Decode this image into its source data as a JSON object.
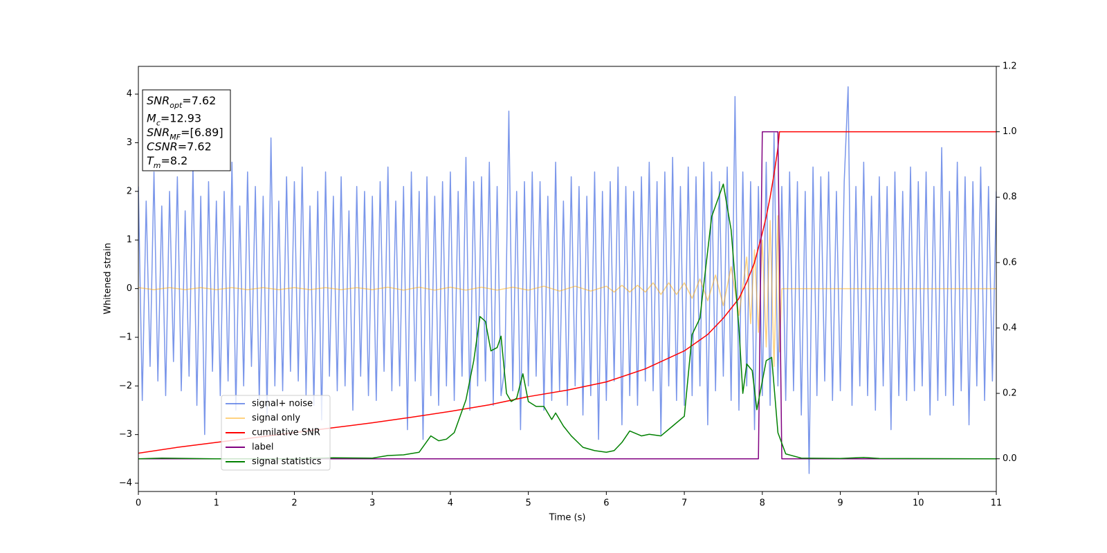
{
  "chart_data": {
    "type": "line",
    "xlabel": "Time (s)",
    "ylabel": "Whitened strain",
    "xlim": [
      0,
      11
    ],
    "xticks": [
      0,
      1,
      2,
      3,
      4,
      5,
      6,
      7,
      8,
      9,
      10,
      11
    ],
    "ylim": [
      -4.17,
      4.57
    ],
    "yticks": [
      {
        "value": -4,
        "label": "−4"
      },
      {
        "value": -3,
        "label": "−3"
      },
      {
        "value": -2,
        "label": "−2"
      },
      {
        "value": -1,
        "label": "−1"
      },
      0,
      1,
      2,
      3,
      4
    ],
    "y2lim": [
      -0.1,
      1.2
    ],
    "y2ticks": [
      {
        "value": 0,
        "label": "0.0"
      },
      {
        "value": 0.2,
        "label": "0.2"
      },
      {
        "value": 0.4,
        "label": "0.4"
      },
      {
        "value": 0.6,
        "label": "0.6"
      },
      {
        "value": 0.8,
        "label": "0.8"
      },
      {
        "value": 1.0,
        "label": "1.0"
      },
      {
        "value": 1.2,
        "label": "1.2"
      }
    ],
    "legend": "lower left",
    "annotation": [
      {
        "var": "SNR",
        "sub": "opt",
        "text": "=7.62"
      },
      {
        "var": "M",
        "sub": "c",
        "text": "=12.93"
      },
      {
        "var": "SNR",
        "sub": "MF",
        "text": "=[6.89]"
      },
      {
        "var": "CSNR",
        "text": "=7.62"
      },
      {
        "var": "T",
        "sub": "m",
        "text": "=8.2"
      }
    ],
    "series": [
      {
        "name": "signal+ noise",
        "color": "#4169e1",
        "alpha": 0.7,
        "x": [
          0,
          0.05,
          0.1,
          0.15,
          0.2,
          0.25,
          0.3,
          0.35,
          0.4,
          0.45,
          0.5,
          0.55,
          0.6,
          0.65,
          0.7,
          0.75,
          0.8,
          0.85,
          0.9,
          0.95,
          1,
          1.05,
          1.1,
          1.15,
          1.2,
          1.25,
          1.3,
          1.35,
          1.4,
          1.45,
          1.5,
          1.55,
          1.6,
          1.65,
          1.7,
          1.75,
          1.8,
          1.85,
          1.9,
          1.95,
          2,
          2.05,
          2.1,
          2.15,
          2.2,
          2.25,
          2.3,
          2.35,
          2.4,
          2.45,
          2.5,
          2.55,
          2.6,
          2.65,
          2.7,
          2.75,
          2.8,
          2.85,
          2.9,
          2.95,
          3,
          3.05,
          3.1,
          3.15,
          3.2,
          3.25,
          3.3,
          3.35,
          3.4,
          3.45,
          3.5,
          3.55,
          3.6,
          3.65,
          3.7,
          3.75,
          3.8,
          3.85,
          3.9,
          3.95,
          4,
          4.05,
          4.1,
          4.15,
          4.2,
          4.25,
          4.3,
          4.35,
          4.4,
          4.45,
          4.5,
          4.55,
          4.6,
          4.65,
          4.7,
          4.75,
          4.8,
          4.85,
          4.9,
          4.95,
          5,
          5.05,
          5.1,
          5.15,
          5.2,
          5.25,
          5.3,
          5.35,
          5.4,
          5.45,
          5.5,
          5.55,
          5.6,
          5.65,
          5.7,
          5.75,
          5.8,
          5.85,
          5.9,
          5.95,
          6,
          6.05,
          6.1,
          6.15,
          6.2,
          6.25,
          6.3,
          6.35,
          6.4,
          6.45,
          6.5,
          6.55,
          6.6,
          6.65,
          6.7,
          6.75,
          6.8,
          6.85,
          6.9,
          6.95,
          7,
          7.05,
          7.1,
          7.15,
          7.2,
          7.25,
          7.3,
          7.35,
          7.4,
          7.45,
          7.5,
          7.55,
          7.6,
          7.65,
          7.7,
          7.75,
          7.8,
          7.85,
          7.9,
          7.95,
          8,
          8.05,
          8.1,
          8.15,
          8.2,
          8.25,
          8.3,
          8.35,
          8.4,
          8.45,
          8.5,
          8.55,
          8.6,
          8.65,
          8.7,
          8.75,
          8.8,
          8.85,
          8.9,
          8.95,
          9,
          9.05,
          9.1,
          9.15,
          9.2,
          9.25,
          9.3,
          9.35,
          9.4,
          9.45,
          9.5,
          9.55,
          9.6,
          9.65,
          9.7,
          9.75,
          9.8,
          9.85,
          9.9,
          9.95,
          10,
          10.05,
          10.1,
          10.15,
          10.2,
          10.25,
          10.3,
          10.35,
          10.4,
          10.45,
          10.5,
          10.55,
          10.6,
          10.65,
          10.7,
          10.75,
          10.8,
          10.85,
          10.9,
          10.95,
          11
        ],
        "values": [
          2.1,
          -2.3,
          1.8,
          -1.6,
          2.4,
          -1.9,
          1.7,
          -2.2,
          2.0,
          -1.5,
          2.3,
          -2.1,
          1.6,
          -1.8,
          2.5,
          -2.4,
          1.9,
          -3.0,
          2.2,
          -1.7,
          1.8,
          -2.2,
          2.0,
          -1.9,
          2.6,
          -2.5,
          1.7,
          -2.0,
          2.4,
          -1.6,
          2.1,
          -2.3,
          1.9,
          -2.6,
          3.1,
          -2.0,
          1.8,
          -2.1,
          2.3,
          -1.7,
          2.2,
          -1.9,
          2.5,
          -2.2,
          1.7,
          -2.4,
          2.0,
          -2.7,
          2.4,
          -1.8,
          1.9,
          -2.1,
          2.3,
          -2.0,
          1.6,
          -2.5,
          2.1,
          -1.8,
          2.0,
          -2.2,
          1.9,
          -2.3,
          2.2,
          -1.7,
          2.5,
          -2.1,
          1.8,
          -2.0,
          2.1,
          -2.9,
          2.4,
          -1.9,
          2.0,
          -3.1,
          2.3,
          -2.2,
          1.9,
          -2.4,
          2.2,
          -2.0,
          2.4,
          -2.3,
          2.0,
          -1.8,
          2.7,
          -2.5,
          2.2,
          -2.0,
          2.3,
          -1.9,
          2.6,
          -2.4,
          2.1,
          -2.2,
          -1.6,
          3.65,
          -2.1,
          2.0,
          -2.9,
          2.2,
          -2.0,
          2.4,
          -1.8,
          2.2,
          -2.5,
          1.9,
          -2.3,
          2.6,
          -2.1,
          1.8,
          -2.4,
          2.3,
          -2.0,
          2.1,
          -2.6,
          1.9,
          -2.2,
          2.4,
          -3.1,
          2.0,
          -2.3,
          2.2,
          -1.9,
          2.5,
          -2.8,
          2.1,
          -2.2,
          2.0,
          -2.4,
          2.3,
          -1.9,
          2.6,
          -2.1,
          2.2,
          -3.0,
          2.4,
          -2.0,
          2.7,
          -2.3,
          2.1,
          -2.4,
          2.5,
          -2.2,
          2.3,
          -2.0,
          2.6,
          -2.8,
          2.4,
          -2.1,
          2.2,
          -1.8,
          2.5,
          -2.3,
          3.95,
          -2.5,
          2.4,
          -2.0,
          2.2,
          -2.9,
          2.1,
          -2.2,
          2.6,
          -2.4,
          3.2,
          -2.0,
          2.1,
          -2.3,
          2.4,
          -2.1,
          2.2,
          -2.6,
          2.0,
          -3.8,
          2.5,
          -2.2,
          2.3,
          -1.9,
          2.4,
          -2.3,
          2.0,
          -2.1,
          2.2,
          4.15,
          -2.4,
          2.1,
          -2.0,
          2.6,
          -2.2,
          1.9,
          -2.5,
          2.3,
          -2.0,
          2.1,
          -2.9,
          2.4,
          -2.2,
          2.0,
          -2.3,
          2.5,
          -2.1,
          2.2,
          -2.0,
          2.4,
          -2.6,
          2.1,
          -2.3,
          2.9,
          -2.2,
          2.0,
          -2.4,
          2.6,
          -2.1,
          2.3,
          -2.8,
          2.2,
          -2.0,
          2.5,
          -2.3,
          2.1,
          -1.9,
          2.0
        ]
      },
      {
        "name": "signal only",
        "color": "#ffa500",
        "alpha": 0.5,
        "x": [
          0,
          0.2,
          0.4,
          0.6,
          0.8,
          1.0,
          1.2,
          1.4,
          1.6,
          1.8,
          2.0,
          2.2,
          2.4,
          2.6,
          2.8,
          3.0,
          3.2,
          3.4,
          3.6,
          3.8,
          4.0,
          4.2,
          4.4,
          4.6,
          4.8,
          5.0,
          5.2,
          5.4,
          5.6,
          5.8,
          6.0,
          6.1,
          6.2,
          6.3,
          6.4,
          6.5,
          6.6,
          6.7,
          6.8,
          6.9,
          7.0,
          7.1,
          7.2,
          7.3,
          7.4,
          7.5,
          7.6,
          7.7,
          7.8,
          7.85,
          7.9,
          7.95,
          8.0,
          8.05,
          8.1,
          8.15,
          8.2,
          8.22,
          8.25,
          11
        ],
        "values": [
          0.02,
          -0.02,
          0.02,
          -0.02,
          0.02,
          -0.02,
          0.02,
          -0.02,
          0.02,
          -0.02,
          0.02,
          -0.02,
          0.02,
          -0.02,
          0.02,
          -0.02,
          0.03,
          -0.03,
          0.03,
          -0.03,
          0.03,
          -0.03,
          0.03,
          -0.03,
          0.03,
          -0.03,
          0.05,
          -0.05,
          0.05,
          -0.05,
          0.05,
          -0.07,
          0.07,
          -0.07,
          0.07,
          -0.07,
          0.12,
          -0.12,
          0.12,
          -0.12,
          0.12,
          -0.2,
          0.2,
          -0.25,
          0.28,
          -0.35,
          0.45,
          -0.55,
          0.65,
          -0.72,
          0.8,
          -0.9,
          1.0,
          -1.2,
          1.4,
          -1.6,
          1.5,
          -1.3,
          0,
          0
        ]
      },
      {
        "name": "cumilative SNR",
        "color": "#ff0000",
        "axis": "y2",
        "x": [
          0,
          0.5,
          1,
          1.5,
          2,
          2.5,
          3,
          3.5,
          4,
          4.5,
          5,
          5.5,
          6,
          6.5,
          7,
          7.3,
          7.5,
          7.7,
          7.8,
          7.9,
          8.0,
          8.05,
          8.1,
          8.15,
          8.2,
          8.22,
          11
        ],
        "values": [
          0.017,
          0.035,
          0.05,
          0.065,
          0.08,
          0.095,
          0.11,
          0.127,
          0.145,
          0.165,
          0.19,
          0.21,
          0.235,
          0.275,
          0.33,
          0.38,
          0.43,
          0.49,
          0.54,
          0.6,
          0.69,
          0.74,
          0.8,
          0.87,
          0.95,
          1.0,
          1.0
        ]
      },
      {
        "name": "label",
        "color": "#800080",
        "axis": "y2",
        "x": [
          0,
          7.95,
          8.0,
          8.2,
          8.25,
          11
        ],
        "values": [
          0,
          0,
          1,
          1,
          0,
          0
        ]
      },
      {
        "name": "signal statistics",
        "color": "#008000",
        "axis": "y2",
        "x": [
          0,
          0.3,
          1,
          2,
          2.5,
          3,
          3.2,
          3.4,
          3.6,
          3.75,
          3.85,
          3.95,
          4.05,
          4.2,
          4.3,
          4.38,
          4.45,
          4.52,
          4.6,
          4.65,
          4.72,
          4.78,
          4.85,
          4.93,
          5,
          5.1,
          5.2,
          5.3,
          5.35,
          5.45,
          5.55,
          5.7,
          5.85,
          6,
          6.1,
          6.2,
          6.3,
          6.45,
          6.55,
          6.7,
          6.85,
          7,
          7.1,
          7.2,
          7.35,
          7.5,
          7.6,
          7.7,
          7.75,
          7.8,
          7.87,
          7.93,
          8.05,
          8.12,
          8.2,
          8.3,
          8.5,
          9,
          9.3,
          9.5,
          11
        ],
        "values": [
          0,
          0.002,
          0,
          0,
          0.003,
          0.002,
          0.01,
          0.012,
          0.02,
          0.07,
          0.055,
          0.06,
          0.08,
          0.18,
          0.3,
          0.435,
          0.42,
          0.33,
          0.34,
          0.375,
          0.2,
          0.175,
          0.185,
          0.26,
          0.175,
          0.16,
          0.16,
          0.12,
          0.14,
          0.1,
          0.07,
          0.035,
          0.025,
          0.02,
          0.025,
          0.05,
          0.085,
          0.07,
          0.075,
          0.07,
          0.1,
          0.13,
          0.38,
          0.43,
          0.74,
          0.84,
          0.7,
          0.4,
          0.2,
          0.29,
          0.27,
          0.15,
          0.3,
          0.31,
          0.08,
          0.015,
          0.002,
          0.001,
          0.004,
          0.001,
          0
        ]
      }
    ]
  }
}
